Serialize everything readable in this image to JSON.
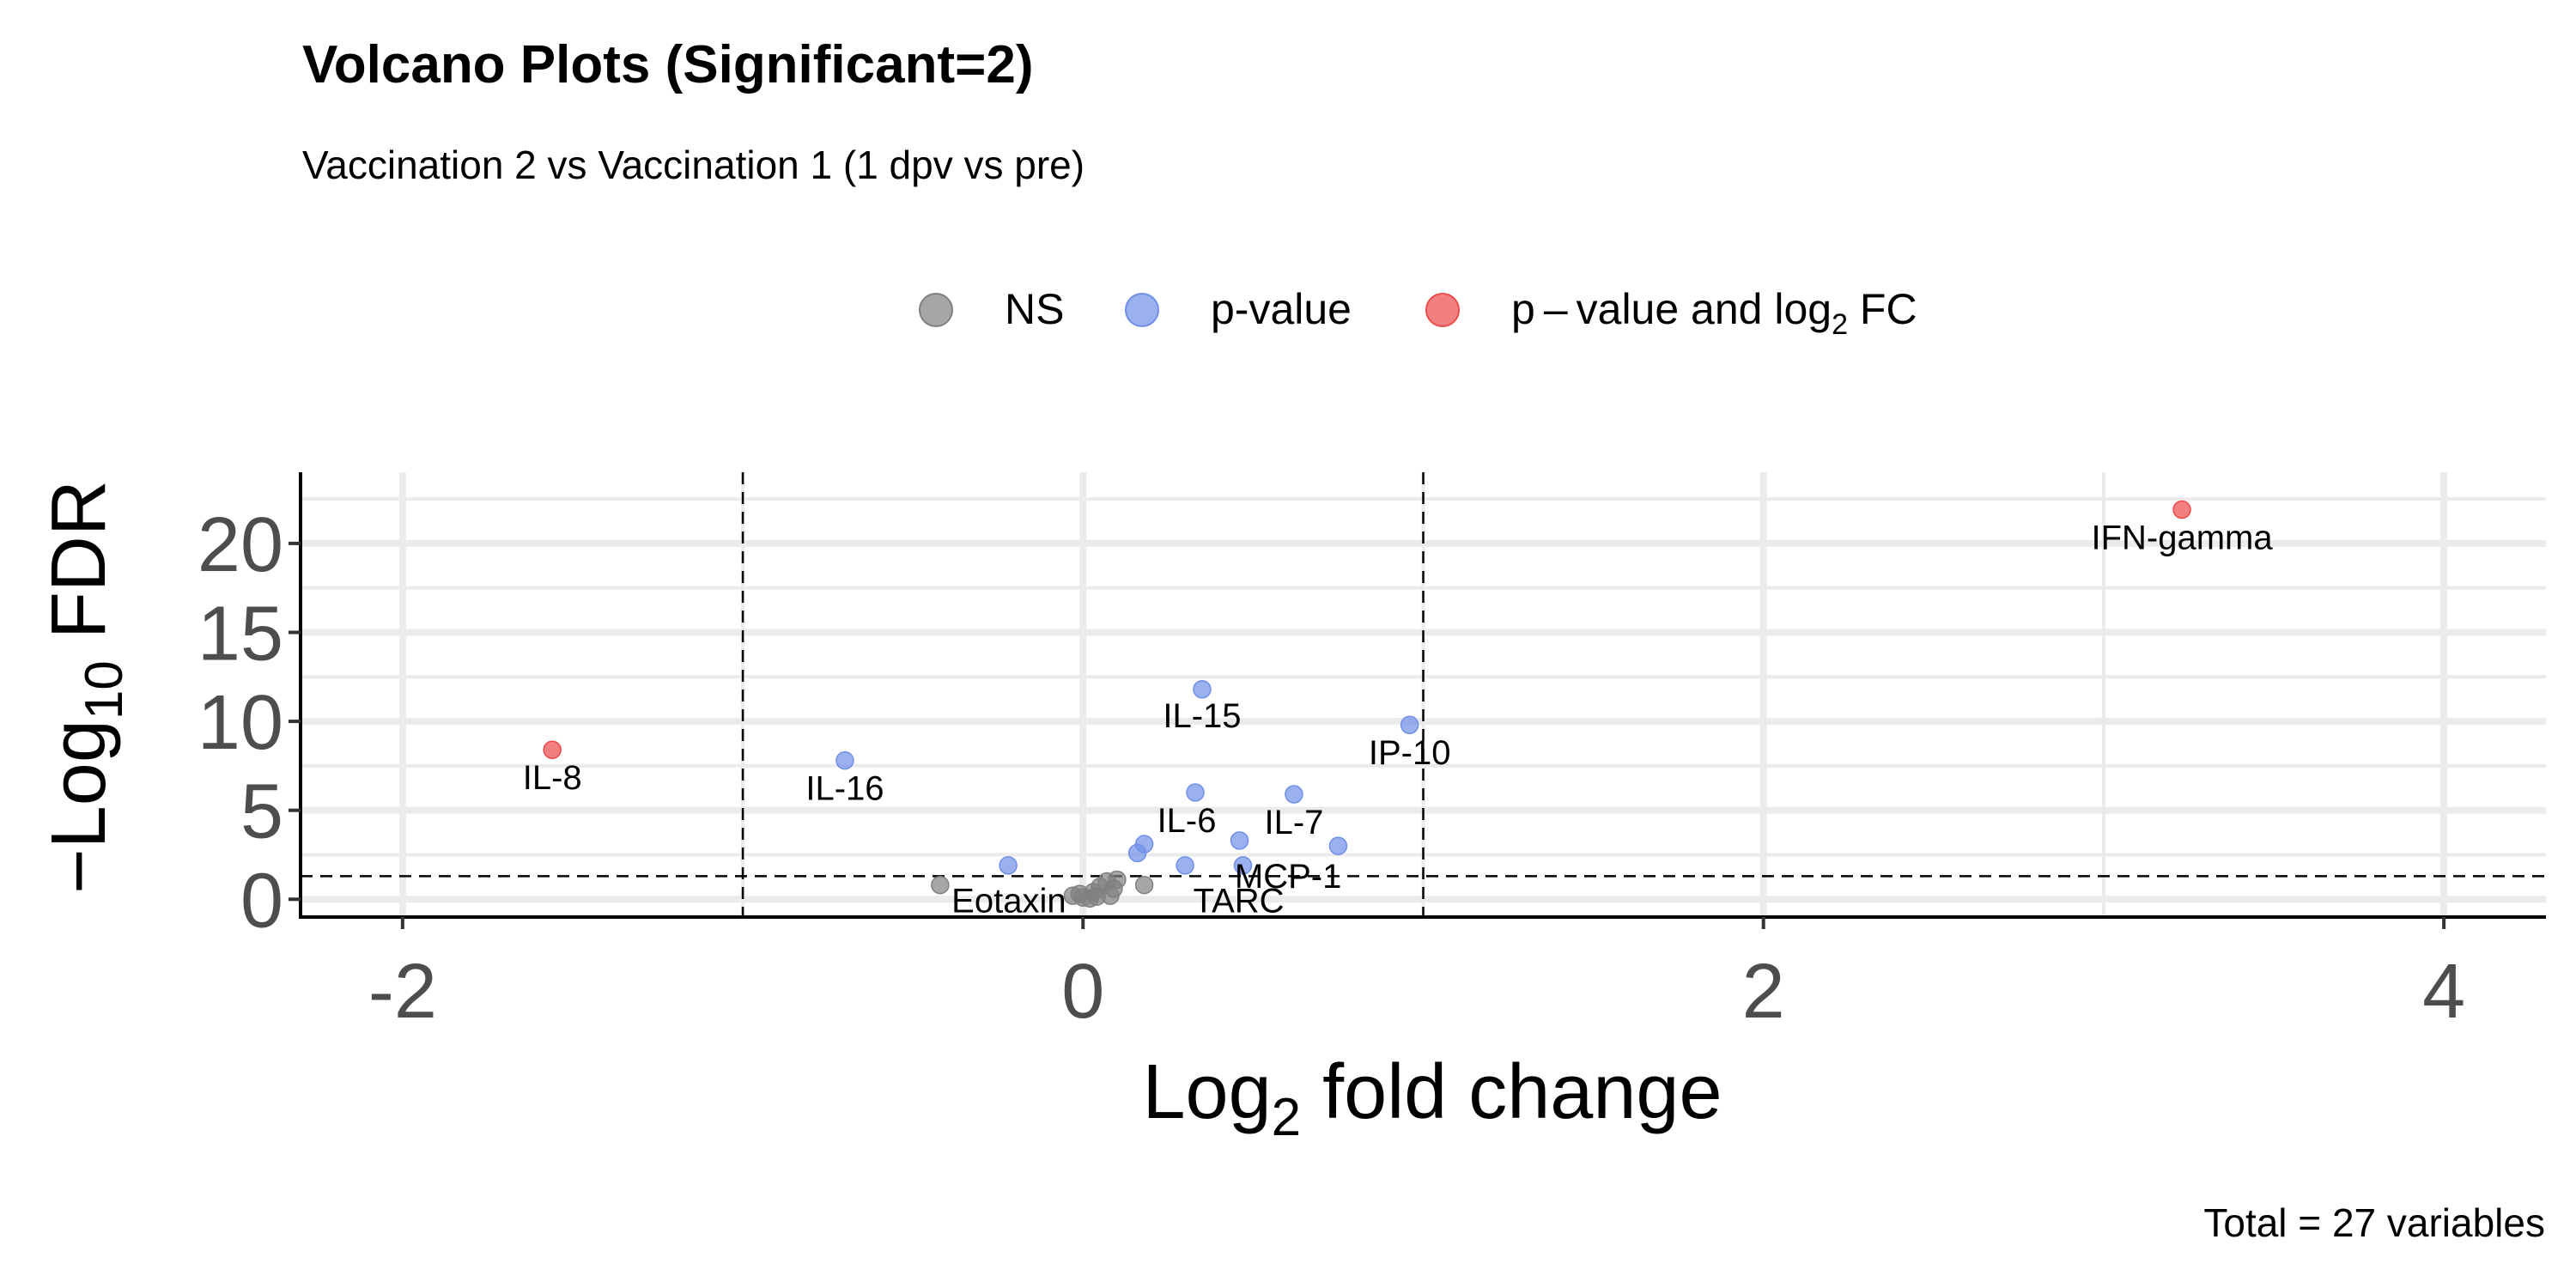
{
  "chart_data": {
    "type": "scatter",
    "title": "Volcano Plots (Significant=2)",
    "subtitle": "Vaccination 2 vs Vaccination 1 (1 dpv vs pre)",
    "xlabel": {
      "main": "Log",
      "sub": "2",
      "rest": " fold change"
    },
    "ylabel": {
      "main": "−Log",
      "sub": "10",
      "rest": " FDR"
    },
    "caption": "Total = 27 variables",
    "xlim": [
      -2.3,
      4.3
    ],
    "ylim": [
      -1,
      24
    ],
    "x_ticks": [
      {
        "value": -2,
        "label": "-2"
      },
      {
        "value": 0,
        "label": "0"
      },
      {
        "value": 2,
        "label": "2"
      },
      {
        "value": 4,
        "label": "4"
      }
    ],
    "y_ticks": [
      {
        "value": 0,
        "label": "0"
      },
      {
        "value": 5,
        "label": "5"
      },
      {
        "value": 10,
        "label": "10"
      },
      {
        "value": 15,
        "label": "15"
      },
      {
        "value": 20,
        "label": "20"
      }
    ],
    "grid": true,
    "fc_cutoff": [
      -1,
      1
    ],
    "p_cutoff": 1.3,
    "colors": {
      "NS": "#808080",
      "p-value": "#6F8FE8",
      "p-value and log2 FC": "#EE4A4A"
    },
    "legend": {
      "position": "top",
      "entries": [
        {
          "key": "NS",
          "label": "NS"
        },
        {
          "key": "p-value",
          "label": "p-value"
        },
        {
          "key": "p-value and log2 FC",
          "label": "p – value and log",
          "sub": "2",
          "rest": " FC"
        }
      ]
    },
    "points": [
      {
        "label": "IFN-gamma",
        "x": 3.23,
        "y": 21.9,
        "group": "p-value and log2 FC"
      },
      {
        "label": "IL-8",
        "x": -1.56,
        "y": 8.4,
        "group": "p-value and log2 FC"
      },
      {
        "label": "IL-16",
        "x": -0.7,
        "y": 7.8,
        "group": "p-value"
      },
      {
        "label": "IL-15",
        "x": 0.35,
        "y": 11.8,
        "group": "p-value"
      },
      {
        "label": "IP-10",
        "x": 0.96,
        "y": 9.8,
        "group": "p-value"
      },
      {
        "label": "IL-6",
        "x": 0.33,
        "y": 6.0,
        "group": "p-value"
      },
      {
        "label": "IL-7",
        "x": 0.62,
        "y": 5.9,
        "group": "p-value"
      },
      {
        "label": "",
        "x": 0.75,
        "y": 3.0,
        "group": "p-value"
      },
      {
        "label": "",
        "x": 0.46,
        "y": 3.3,
        "group": "p-value"
      },
      {
        "label": "",
        "x": 0.18,
        "y": 3.1,
        "group": "p-value"
      },
      {
        "label": "",
        "x": 0.16,
        "y": 2.6,
        "group": "p-value"
      },
      {
        "label": "MCP-1",
        "x": 0.3,
        "y": 1.9,
        "group": "p-value"
      },
      {
        "label": "",
        "x": 0.47,
        "y": 1.9,
        "group": "p-value"
      },
      {
        "label": "",
        "x": -0.22,
        "y": 1.9,
        "group": "p-value"
      },
      {
        "label": "Eotaxin",
        "x": -0.42,
        "y": 0.8,
        "group": "NS"
      },
      {
        "label": "TARC",
        "x": 0.18,
        "y": 0.8,
        "group": "NS"
      },
      {
        "label": "",
        "x": 0.07,
        "y": 1.0,
        "group": "NS"
      },
      {
        "label": "",
        "x": 0.1,
        "y": 1.1,
        "group": "NS"
      },
      {
        "label": "",
        "x": 0.05,
        "y": 0.7,
        "group": "NS"
      },
      {
        "label": "",
        "x": 0.03,
        "y": 0.4,
        "group": "NS"
      },
      {
        "label": "",
        "x": -0.01,
        "y": 0.3,
        "group": "NS"
      },
      {
        "label": "",
        "x": 0.08,
        "y": 0.2,
        "group": "NS"
      },
      {
        "label": "",
        "x": 0.0,
        "y": 0.1,
        "group": "NS"
      },
      {
        "label": "",
        "x": 0.02,
        "y": 0.05,
        "group": "NS"
      },
      {
        "label": "",
        "x": 0.09,
        "y": 0.6,
        "group": "NS"
      },
      {
        "label": "",
        "x": 0.04,
        "y": 0.15,
        "group": "NS"
      },
      {
        "label": "",
        "x": -0.03,
        "y": 0.2,
        "group": "NS"
      }
    ]
  }
}
